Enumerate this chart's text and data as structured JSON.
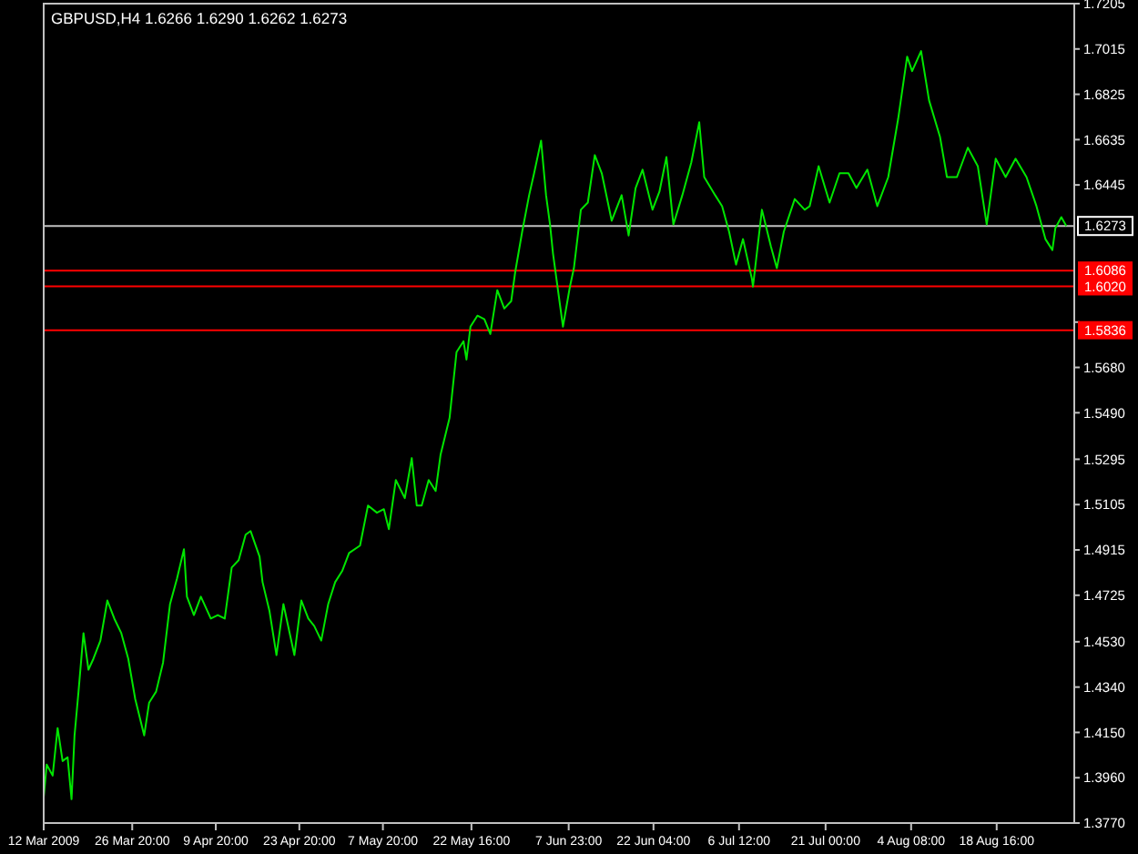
{
  "chart_data": {
    "type": "line",
    "title": "GBPUSD,H4  1.6266 1.6290 1.6262 1.6273",
    "x": [
      "2009-03-12T00:00",
      "2009-03-12T12:00",
      "2009-03-13T12:00",
      "2009-03-14T08:00",
      "2009-03-15T04:00",
      "2009-03-16T00:00",
      "2009-03-16T16:00",
      "2009-03-17T04:00",
      "2009-03-17T20:00",
      "2009-03-18T16:00",
      "2009-03-19T12:00",
      "2009-03-20T08:00",
      "2009-03-21T12:00",
      "2009-03-22T16:00",
      "2009-03-23T20:00",
      "2009-03-25T00:00",
      "2009-03-26T04:00",
      "2009-03-27T08:00",
      "2009-03-28T20:00",
      "2009-03-29T16:00",
      "2009-03-30T20:00",
      "2009-04-01T00:00",
      "2009-04-02T04:00",
      "2009-04-03T08:00",
      "2009-04-04T12:00",
      "2009-04-05T00:00",
      "2009-04-06T04:00",
      "2009-04-07T08:00",
      "2009-04-09T00:00",
      "2009-04-10T04:00",
      "2009-04-11T08:00",
      "2009-04-12T12:00",
      "2009-04-13T16:00",
      "2009-04-14T20:00",
      "2009-04-15T16:00",
      "2009-04-17T04:00",
      "2009-04-17T16:00",
      "2009-04-18T20:00",
      "2009-04-20T00:00",
      "2009-04-21T04:00",
      "2009-04-23T00:00",
      "2009-04-24T04:00",
      "2009-04-25T08:00",
      "2009-04-26T08:00",
      "2009-04-27T12:00",
      "2009-04-28T16:00",
      "2009-04-29T20:00",
      "2009-05-01T00:00",
      "2009-05-02T04:00",
      "2009-05-04T00:00",
      "2009-05-05T08:00",
      "2009-05-06T20:00",
      "2009-05-08T00:00",
      "2009-05-08T20:00",
      "2009-05-10T00:00",
      "2009-05-11T12:00",
      "2009-05-12T16:00",
      "2009-05-13T12:00",
      "2009-05-14T08:00",
      "2009-05-15T12:00",
      "2009-05-16T16:00",
      "2009-05-17T12:00",
      "2009-05-19T00:00",
      "2009-05-20T04:00",
      "2009-05-21T08:00",
      "2009-05-21T20:00",
      "2009-05-22T12:00",
      "2009-05-23T16:00",
      "2009-05-24T20:00",
      "2009-05-25T20:00",
      "2009-05-27T00:00",
      "2009-05-28T04:00",
      "2009-05-29T08:00",
      "2009-05-30T00:00",
      "2009-05-31T04:00",
      "2009-06-01T08:00",
      "2009-06-02T04:00",
      "2009-06-03T08:00",
      "2009-06-04T04:00",
      "2009-06-04T20:00",
      "2009-06-05T08:00",
      "2009-06-07T00:00",
      "2009-06-08T04:00",
      "2009-06-08T20:00",
      "2009-06-10T00:00",
      "2009-06-11T04:00",
      "2009-06-12T08:00",
      "2009-06-13T12:00",
      "2009-06-15T04:00",
      "2009-06-16T20:00",
      "2009-06-18T00:00",
      "2009-06-19T04:00",
      "2009-06-20T08:00",
      "2009-06-22T00:00",
      "2009-06-23T04:00",
      "2009-06-24T08:00",
      "2009-06-25T12:00",
      "2009-06-27T00:00",
      "2009-06-28T12:00",
      "2009-06-29T20:00",
      "2009-06-30T16:00",
      "2009-07-02T12:00",
      "2009-07-03T16:00",
      "2009-07-04T20:00",
      "2009-07-06T00:00",
      "2009-07-07T04:00",
      "2009-07-08T16:00",
      "2009-07-08T20:00",
      "2009-07-10T08:00",
      "2009-07-11T20:00",
      "2009-07-12T20:00",
      "2009-07-14T00:00",
      "2009-07-15T20:00",
      "2009-07-17T12:00",
      "2009-07-18T08:00",
      "2009-07-19T20:00",
      "2009-07-21T16:00",
      "2009-07-23T08:00",
      "2009-07-24T20:00",
      "2009-07-26T04:00",
      "2009-07-28T00:00",
      "2009-07-29T16:00",
      "2009-07-31T12:00",
      "2009-08-02T04:00",
      "2009-08-03T16:00",
      "2009-08-04T12:00",
      "2009-08-06T00:00",
      "2009-08-07T08:00",
      "2009-08-09T04:00",
      "2009-08-10T08:00",
      "2009-08-12T00:00",
      "2009-08-13T20:00",
      "2009-08-15T12:00",
      "2009-08-17T00:00",
      "2009-08-18T12:00",
      "2009-08-20T04:00",
      "2009-08-21T20:00",
      "2009-08-23T16:00",
      "2009-08-25T08:00",
      "2009-08-26T20:00",
      "2009-08-28T00:00",
      "2009-08-28T12:00",
      "2009-08-29T12:00",
      "2009-08-30T08:00"
    ],
    "series": [
      {
        "color": "#00e600",
        "values": [
          1.3877,
          1.4015,
          1.3969,
          1.4168,
          1.403,
          1.4046,
          1.387,
          1.4137,
          1.4321,
          1.4566,
          1.4413,
          1.4459,
          1.4535,
          1.4703,
          1.4627,
          1.4566,
          1.4459,
          1.429,
          1.4137,
          1.4275,
          1.4321,
          1.4443,
          1.4688,
          1.4795,
          1.4918,
          1.4719,
          1.4642,
          1.4719,
          1.4627,
          1.4642,
          1.4627,
          1.4841,
          1.4872,
          1.4979,
          1.4994,
          1.4887,
          1.478,
          1.4658,
          1.4474,
          1.4688,
          1.4474,
          1.4703,
          1.4627,
          1.4596,
          1.4535,
          1.4688,
          1.478,
          1.4826,
          1.4902,
          1.4933,
          1.5101,
          1.5071,
          1.5086,
          1.5002,
          1.5208,
          1.5132,
          1.53,
          1.5101,
          1.5101,
          1.5208,
          1.5162,
          1.5315,
          1.5468,
          1.5744,
          1.579,
          1.5713,
          1.5851,
          1.5897,
          1.5882,
          1.582,
          1.6004,
          1.5927,
          1.5958,
          1.608,
          1.6249,
          1.6402,
          1.6494,
          1.6631,
          1.6402,
          1.6279,
          1.6157,
          1.5851,
          1.6019,
          1.6096,
          1.6341,
          1.6371,
          1.657,
          1.6494,
          1.6295,
          1.6402,
          1.6233,
          1.6432,
          1.6509,
          1.6341,
          1.6417,
          1.6562,
          1.6279,
          1.6402,
          1.6539,
          1.6708,
          1.6478,
          1.6402,
          1.6356,
          1.6249,
          1.6111,
          1.6218,
          1.605,
          1.6019,
          1.6341,
          1.6188,
          1.6096,
          1.6249,
          1.6386,
          1.6341,
          1.6356,
          1.6524,
          1.6371,
          1.6494,
          1.6494,
          1.6432,
          1.6509,
          1.6356,
          1.6478,
          1.6723,
          1.6983,
          1.6922,
          1.7006,
          1.68,
          1.6647,
          1.6478,
          1.6478,
          1.6601,
          1.6524,
          1.6279,
          1.6555,
          1.6478,
          1.6555,
          1.6478,
          1.6356,
          1.6218,
          1.6172,
          1.6264,
          1.631,
          1.6273
        ]
      }
    ],
    "xlim": [
      "2009-03-12T00:00",
      "2009-08-31T16:00"
    ],
    "xticks": [
      {
        "value": "2009-03-12T00:00",
        "label": "12 Mar 2009"
      },
      {
        "value": "2009-03-26T20:00",
        "label": "26 Mar 20:00"
      },
      {
        "value": "2009-04-09T20:00",
        "label": "9 Apr 20:00"
      },
      {
        "value": "2009-04-23T20:00",
        "label": "23 Apr 20:00"
      },
      {
        "value": "2009-05-07T20:00",
        "label": "7 May 20:00"
      },
      {
        "value": "2009-05-22T16:00",
        "label": "22 May 16:00"
      },
      {
        "value": "2009-06-07T23:00",
        "label": "7 Jun 23:00"
      },
      {
        "value": "2009-06-22T04:00",
        "label": "22 Jun 04:00"
      },
      {
        "value": "2009-07-06T12:00",
        "label": "6 Jul 12:00"
      },
      {
        "value": "2009-07-21T00:00",
        "label": "21 Jul 00:00"
      },
      {
        "value": "2009-08-04T08:00",
        "label": "4 Aug 08:00"
      },
      {
        "value": "2009-08-18T16:00",
        "label": "18 Aug 16:00"
      }
    ],
    "ylim": [
      1.377,
      1.7205
    ],
    "yticks": [
      {
        "value": 1.7205,
        "label": "1.7205"
      },
      {
        "value": 1.7015,
        "label": "1.7015"
      },
      {
        "value": 1.6825,
        "label": "1.6825"
      },
      {
        "value": 1.6635,
        "label": "1.6635"
      },
      {
        "value": 1.6445,
        "label": "1.6445"
      },
      {
        "value": 1.587,
        "label": null
      },
      {
        "value": 1.568,
        "label": "1.5680"
      },
      {
        "value": 1.549,
        "label": "1.5490"
      },
      {
        "value": 1.5295,
        "label": "1.5295"
      },
      {
        "value": 1.5105,
        "label": "1.5105"
      },
      {
        "value": 1.4915,
        "label": "1.4915"
      },
      {
        "value": 1.4725,
        "label": "1.4725"
      },
      {
        "value": 1.453,
        "label": "1.4530"
      },
      {
        "value": 1.434,
        "label": "1.4340"
      },
      {
        "value": 1.415,
        "label": "1.4150"
      },
      {
        "value": 1.396,
        "label": "1.3960"
      },
      {
        "value": 1.377,
        "label": "1.3770"
      }
    ],
    "ref_lines": [
      {
        "axis": "y",
        "value": 1.6273,
        "label": "1.6273",
        "color": "#c0c0c0"
      },
      {
        "axis": "y",
        "value": 1.6086,
        "label": "1.6086",
        "color": "#ff0000"
      },
      {
        "axis": "y",
        "value": 1.602,
        "label": "1.6020",
        "color": "#ff0000"
      },
      {
        "axis": "y",
        "value": 1.5836,
        "label": "1.5836",
        "color": "#ff0000"
      }
    ],
    "grid": false,
    "legend": false,
    "marker": "none",
    "line_style": "solid"
  }
}
